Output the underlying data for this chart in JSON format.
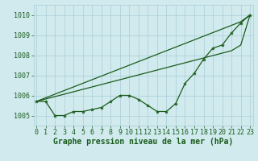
{
  "x": [
    0,
    1,
    2,
    3,
    4,
    5,
    6,
    7,
    8,
    9,
    10,
    11,
    12,
    13,
    14,
    15,
    16,
    17,
    18,
    19,
    20,
    21,
    22,
    23
  ],
  "line_wavy": [
    1005.7,
    1005.7,
    1005.0,
    1005.0,
    1005.2,
    1005.2,
    1005.3,
    1005.4,
    1005.7,
    1006.0,
    1006.0,
    1005.8,
    1005.5,
    1005.2,
    1005.2,
    1005.6,
    1006.6,
    1007.1,
    1007.8,
    1008.35,
    1008.5,
    1009.1,
    1009.6,
    1010.0
  ],
  "line_straight1": [
    1005.7,
    1005.88,
    1006.06,
    1006.24,
    1006.42,
    1006.6,
    1006.78,
    1006.96,
    1007.14,
    1007.32,
    1007.5,
    1007.68,
    1007.86,
    1008.04,
    1008.22,
    1008.4,
    1008.58,
    1008.76,
    1008.94,
    1009.12,
    1009.3,
    1009.48,
    1009.66,
    1010.0
  ],
  "line_straight2": [
    1005.7,
    1005.82,
    1005.94,
    1006.06,
    1006.18,
    1006.3,
    1006.42,
    1006.54,
    1006.66,
    1006.78,
    1006.9,
    1007.02,
    1007.14,
    1007.26,
    1007.38,
    1007.5,
    1007.62,
    1007.74,
    1007.86,
    1007.98,
    1008.1,
    1008.22,
    1008.5,
    1010.0
  ],
  "ylim": [
    1004.5,
    1010.5
  ],
  "xlim": [
    -0.3,
    23.3
  ],
  "yticks": [
    1005,
    1006,
    1007,
    1008,
    1009,
    1010
  ],
  "xticks": [
    0,
    1,
    2,
    3,
    4,
    5,
    6,
    7,
    8,
    9,
    10,
    11,
    12,
    13,
    14,
    15,
    16,
    17,
    18,
    19,
    20,
    21,
    22,
    23
  ],
  "line_color": "#1a5c1a",
  "bg_color": "#d0eaee",
  "grid_color": "#aaccd8",
  "xlabel": "Graphe pression niveau de la mer (hPa)",
  "xlabel_fontsize": 7.0,
  "tick_fontsize": 6.0
}
